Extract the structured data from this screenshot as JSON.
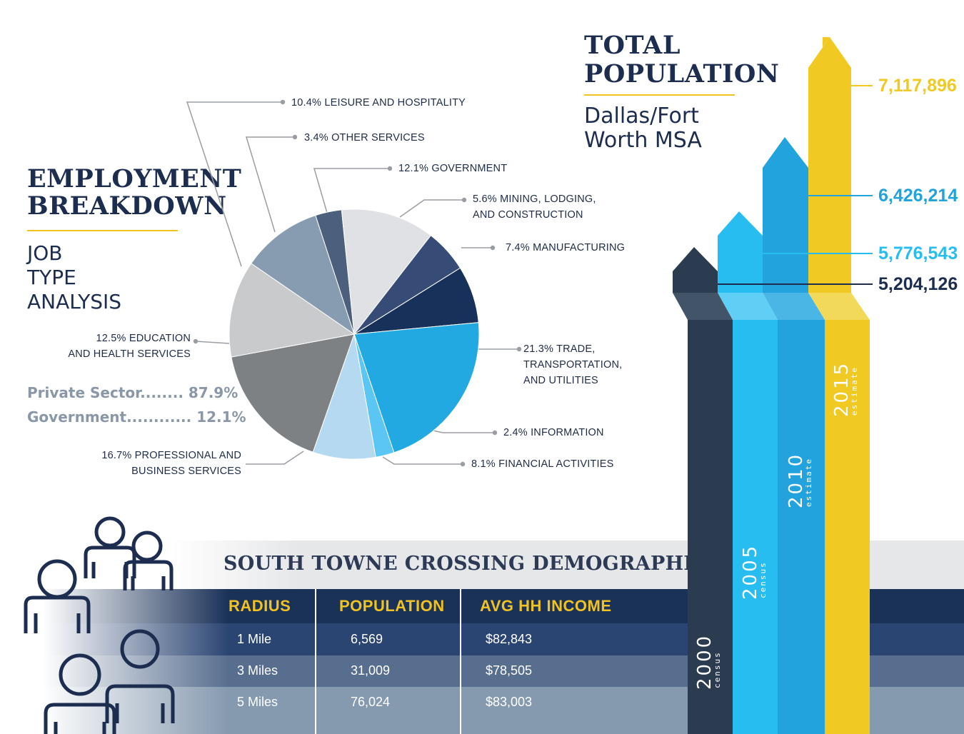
{
  "employment": {
    "title_line1": "EMPLOYMENT",
    "title_line2": "BREAKDOWN",
    "subtitle_lines": [
      "JOB",
      "TYPE",
      "ANALYSIS"
    ],
    "private_sector": "Private Sector........ 87.9%",
    "government": "Government............ 12.1%"
  },
  "population": {
    "title_line1": "TOTAL",
    "title_line2": "POPULATION",
    "subtitle_line1": "Dallas/Fort",
    "subtitle_line2": "Worth MSA"
  },
  "demographics": {
    "title": "SOUTH TOWNE CROSSING DEMOGRAPHICS",
    "headers": [
      "RADIUS",
      "POPULATION",
      "AVG HH INCOME"
    ],
    "rows": [
      [
        "1 Mile",
        "6,569",
        "$82,843"
      ],
      [
        "3 Miles",
        "31,009",
        "$78,505"
      ],
      [
        "5 Miles",
        "76,024",
        "$83,003"
      ]
    ]
  },
  "colors": {
    "navy": "#1c2d4f",
    "gold": "#f0c322",
    "c2000": "#2c3c50",
    "c2005": "#28bdf0",
    "c2010": "#22a3de",
    "c2015": "#f0c922"
  },
  "chart_data": [
    {
      "type": "pie",
      "slices": [
        {
          "label_lines": [
            "7.4% MANUFACTURING"
          ],
          "value": 7.4,
          "color": "#17315a"
        },
        {
          "label_lines": [
            "21.3% TRADE,",
            "TRANSPORTATION,",
            "AND UTILITIES"
          ],
          "value": 21.3,
          "color": "#22a9e1"
        },
        {
          "label_lines": [
            "2.4% INFORMATION"
          ],
          "value": 2.4,
          "color": "#5bc6f3"
        },
        {
          "label_lines": [
            "8.1% FINANCIAL ACTIVITIES"
          ],
          "value": 8.1,
          "color": "#b6d9f2"
        },
        {
          "label_lines": [
            "16.7% PROFESSIONAL AND",
            "BUSINESS SERVICES"
          ],
          "value": 16.7,
          "color": "#7e8184"
        },
        {
          "label_lines": [
            "12.5% EDUCATION",
            "AND HEALTH SERVICES"
          ],
          "value": 12.5,
          "color": "#c9cacc"
        },
        {
          "label_lines": [
            "10.4% LEISURE AND HOSPITALITY"
          ],
          "value": 10.4,
          "color": "#879cb0"
        },
        {
          "label_lines": [
            "3.4% OTHER SERVICES"
          ],
          "value": 3.4,
          "color": "#4c5f7d"
        },
        {
          "label_lines": [
            "12.1% GOVERNMENT"
          ],
          "value": 12.1,
          "color": "#dfe1e4"
        },
        {
          "label_lines": [
            "5.6% MINING, LODGING,",
            "AND CONSTRUCTION"
          ],
          "value": 5.6,
          "color": "#364b76"
        }
      ]
    },
    {
      "type": "bar",
      "categories": [
        "2000",
        "2005",
        "2010",
        "2015"
      ],
      "category_notes": [
        "census",
        "census",
        "estimate",
        "estimate"
      ],
      "values": [
        5204126,
        5776543,
        6426214,
        7117896
      ],
      "value_labels": [
        "5,204,126",
        "5,776,543",
        "6,426,214",
        "7,117,896"
      ]
    }
  ]
}
